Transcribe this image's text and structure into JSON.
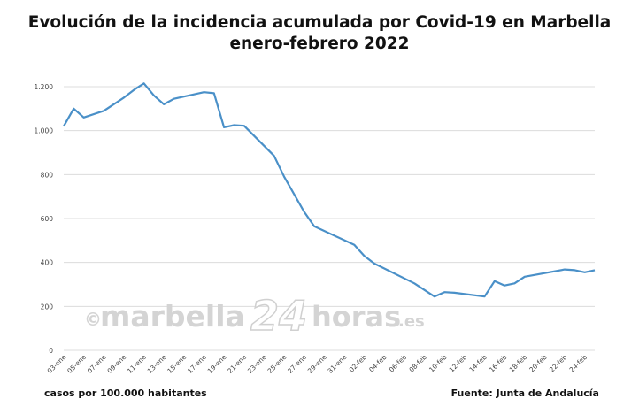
{
  "title_line1": "Evolución de la incidencia acumulada por Covid-19 en Marbella",
  "title_line2": "enero-febrero 2022",
  "footer_left": "casos por 100.000 habitantes",
  "footer_right": "Fuente: Junta de Andalucía",
  "watermark": {
    "copyright": "©",
    "brand": "marbella",
    "number": "24",
    "suffix": "horas",
    "domain": ".es"
  },
  "colors": {
    "line": "#4a90c8",
    "grid": "#dcdcdc",
    "text": "#111111",
    "watermark": "#d4d4d4"
  },
  "chart_data": {
    "type": "line",
    "ylim": [
      0,
      1200
    ],
    "yticks": [
      0,
      200,
      400,
      600,
      800,
      1000,
      1200
    ],
    "ytick_labels": [
      "0",
      "200",
      "400",
      "600",
      "800",
      "1.000",
      "1.200"
    ],
    "xtick_labels": [
      "03-ene",
      "05-ene",
      "07-ene",
      "09-ene",
      "11-ene",
      "13-ene",
      "15-ene",
      "17-ene",
      "19-ene",
      "21-ene",
      "23-ene",
      "25-ene",
      "27-ene",
      "29-ene",
      "31-ene",
      "02-feb",
      "04-feb",
      "06-feb",
      "08-feb",
      "10-feb",
      "12-feb",
      "14-feb",
      "16-feb",
      "18-feb",
      "20-feb",
      "22-feb",
      "24-feb"
    ],
    "series": [
      {
        "x": [
          "03-ene",
          "04-ene",
          "05-ene",
          "07-ene",
          "09-ene",
          "10-ene",
          "11-ene",
          "12-ene",
          "13-ene",
          "14-ene",
          "17-ene",
          "18-ene",
          "19-ene",
          "20-ene",
          "21-ene",
          "24-ene",
          "25-ene",
          "27-ene",
          "28-ene",
          "01-feb",
          "02-feb",
          "03-feb",
          "07-feb",
          "09-feb",
          "10-feb",
          "11-feb",
          "14-feb",
          "15-feb",
          "16-feb",
          "17-feb",
          "18-feb",
          "22-feb",
          "23-feb",
          "24-feb",
          "25-feb"
        ],
        "values": [
          1020,
          1100,
          1060,
          1090,
          1150,
          1185,
          1215,
          1160,
          1120,
          1145,
          1175,
          1170,
          1015,
          1025,
          1022,
          885,
          790,
          630,
          565,
          480,
          430,
          395,
          305,
          245,
          265,
          262,
          245,
          315,
          295,
          305,
          335,
          368,
          365,
          355,
          365
        ]
      }
    ]
  }
}
